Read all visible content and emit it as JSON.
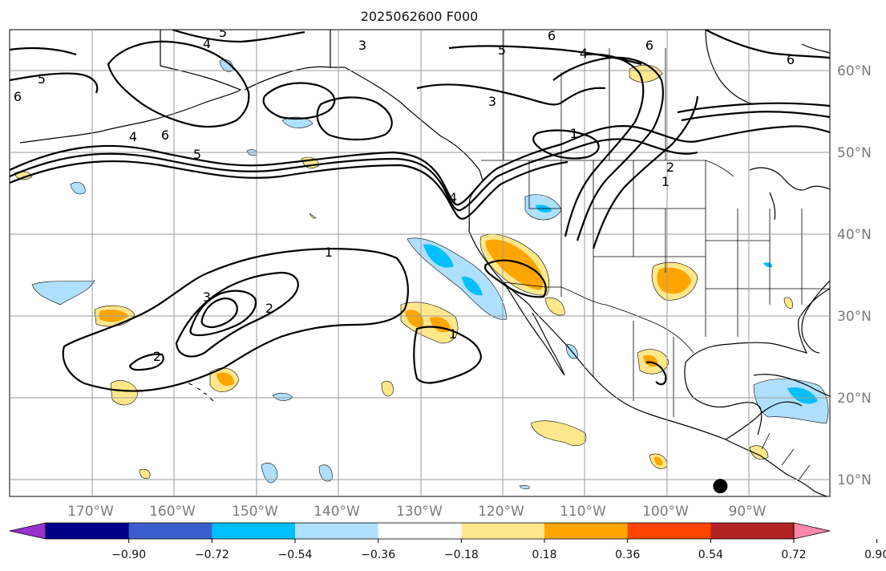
{
  "title": "2025062600 F000",
  "lat_ticks": [
    "10°N",
    "20°N",
    "30°N",
    "40°N",
    "50°N",
    "60°N"
  ],
  "lon_ticks": [
    "170°W",
    "160°W",
    "150°W",
    "140°W",
    "130°W",
    "120°W",
    "110°W",
    "100°W",
    "90°W"
  ],
  "colorbar": {
    "labels": [
      "−0.90",
      "−0.72",
      "−0.54",
      "−0.36",
      "−0.18",
      "0.18",
      "0.36",
      "0.54",
      "0.72",
      "0.90"
    ],
    "colors": [
      "#9932cc",
      "#00008b",
      "#3a5fcd",
      "#00bfff",
      "#afe0ff",
      "#ffffff",
      "#ffe88c",
      "#ffa500",
      "#ff4500",
      "#b22222",
      "#ff88aa"
    ]
  },
  "contour_labels": [
    "1",
    "2",
    "3",
    "4",
    "5",
    "6"
  ],
  "map": {
    "lat_range": [
      8,
      65
    ],
    "lon_range": [
      -180,
      -80
    ],
    "marker": {
      "lon": -93.5,
      "lat": 9.2,
      "color": "#000000"
    }
  }
}
